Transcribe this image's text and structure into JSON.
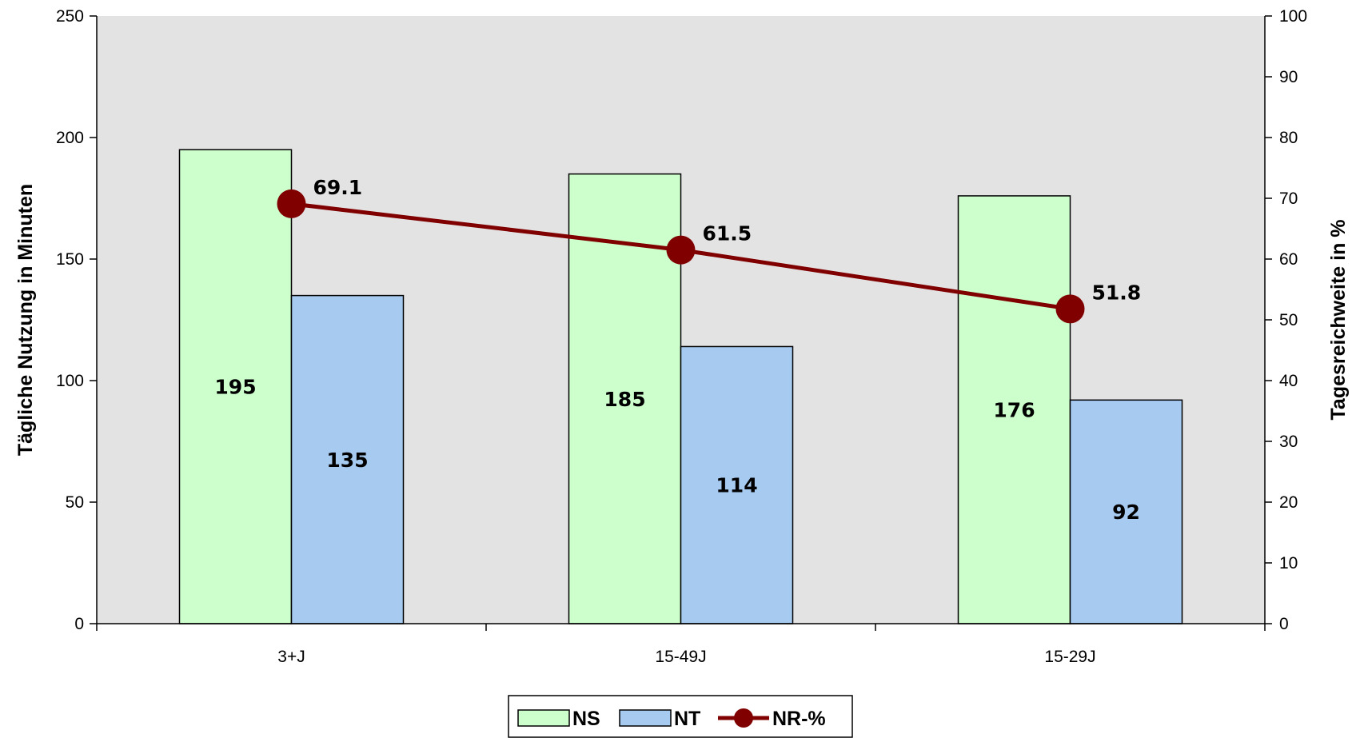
{
  "chart_data": {
    "type": "bar",
    "categories": [
      "3+J",
      "15-49J",
      "15-29J"
    ],
    "series": [
      {
        "name": "NS",
        "kind": "bar",
        "axis": "left",
        "values": [
          195,
          185,
          176
        ],
        "labels": [
          "195",
          "185",
          "176"
        ],
        "color": "#ccffcc"
      },
      {
        "name": "NT",
        "kind": "bar",
        "axis": "left",
        "values": [
          135,
          114,
          92
        ],
        "labels": [
          "135",
          "114",
          "92"
        ],
        "color": "#a6caf0"
      },
      {
        "name": "NR-%",
        "kind": "line",
        "axis": "right",
        "values": [
          69.1,
          61.5,
          51.8
        ],
        "labels": [
          "69.1",
          "61.5",
          "51.8"
        ],
        "color": "#800000"
      }
    ],
    "ylabel": "Tägliche Nutzung in Minuten",
    "y2label": "Tagesreichweite in %",
    "ylim": [
      0,
      250
    ],
    "y2lim": [
      0,
      100
    ],
    "yticks": [
      "0",
      "50",
      "100",
      "150",
      "200",
      "250"
    ],
    "y2ticks": [
      "0",
      "10",
      "20",
      "30",
      "40",
      "50",
      "60",
      "70",
      "80",
      "90",
      "100"
    ],
    "plot_background": "#e3e3e3",
    "grid": false,
    "legend": {
      "position": "bottom-center",
      "entries": [
        "NS",
        "NT",
        "NR-%"
      ]
    }
  }
}
